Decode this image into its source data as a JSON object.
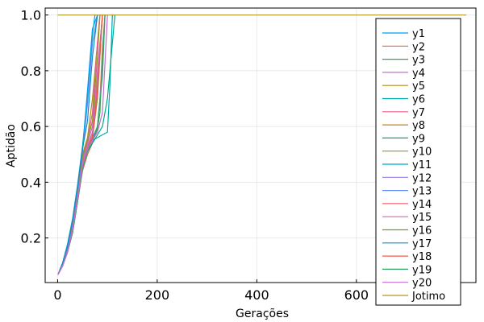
{
  "chart_data": {
    "type": "line",
    "title": "",
    "xlabel": "Gerações",
    "ylabel": "Aptidão",
    "xlim": [
      -25,
      840
    ],
    "ylim": [
      0.04,
      1.025
    ],
    "xticks": [
      0,
      200,
      400,
      600
    ],
    "xtick_labels": [
      "0",
      "200",
      "400",
      "600"
    ],
    "yticks": [
      0.2,
      0.4,
      0.6,
      0.8,
      1.0
    ],
    "ytick_labels": [
      "0.2",
      "0.4",
      "0.6",
      "0.8",
      "1.0"
    ],
    "grid": true,
    "legend_position": "right",
    "series": [
      {
        "name": "y1",
        "color": "#009AFA",
        "x": [
          1,
          10,
          20,
          30,
          40,
          50,
          60,
          70,
          80
        ],
        "y": [
          0.07,
          0.11,
          0.17,
          0.26,
          0.38,
          0.52,
          0.73,
          0.95,
          1.0
        ]
      },
      {
        "name": "y2",
        "color": "#E36F47",
        "x": [
          1,
          10,
          20,
          30,
          40,
          50,
          60,
          70,
          80,
          85,
          90,
          95
        ],
        "y": [
          0.07,
          0.1,
          0.15,
          0.22,
          0.33,
          0.44,
          0.5,
          0.54,
          0.6,
          0.7,
          0.88,
          1.0
        ]
      },
      {
        "name": "y3",
        "color": "#3EA44E",
        "x": [
          1,
          10,
          20,
          30,
          40,
          50,
          60,
          70,
          80,
          85,
          90,
          95
        ],
        "y": [
          0.07,
          0.1,
          0.15,
          0.23,
          0.34,
          0.46,
          0.52,
          0.55,
          0.59,
          0.65,
          0.85,
          1.0
        ]
      },
      {
        "name": "y4",
        "color": "#C371D2",
        "x": [
          1,
          10,
          20,
          30,
          40,
          50,
          60,
          70,
          80,
          90
        ],
        "y": [
          0.07,
          0.1,
          0.16,
          0.24,
          0.36,
          0.48,
          0.54,
          0.6,
          0.8,
          1.0
        ]
      },
      {
        "name": "y5",
        "color": "#AC8D18",
        "x": [
          1,
          10,
          20,
          30,
          40,
          50,
          60,
          70,
          80,
          85
        ],
        "y": [
          0.07,
          0.11,
          0.17,
          0.25,
          0.37,
          0.5,
          0.56,
          0.7,
          0.9,
          1.0
        ]
      },
      {
        "name": "y6",
        "color": "#00A9AD",
        "x": [
          1,
          10,
          20,
          30,
          40,
          50,
          60,
          70,
          80,
          90,
          100,
          105,
          110
        ],
        "y": [
          0.07,
          0.1,
          0.15,
          0.22,
          0.33,
          0.45,
          0.52,
          0.55,
          0.56,
          0.57,
          0.58,
          0.75,
          1.0
        ]
      },
      {
        "name": "y7",
        "color": "#ED5E93",
        "x": [
          1,
          10,
          20,
          30,
          40,
          50,
          60,
          70,
          80,
          85
        ],
        "y": [
          0.07,
          0.11,
          0.16,
          0.24,
          0.36,
          0.49,
          0.55,
          0.65,
          0.9,
          1.0
        ]
      },
      {
        "name": "y8",
        "color": "#C68225",
        "x": [
          1,
          10,
          20,
          30,
          40,
          50,
          60,
          70,
          80,
          90
        ],
        "y": [
          0.07,
          0.1,
          0.16,
          0.24,
          0.35,
          0.47,
          0.53,
          0.57,
          0.75,
          1.0
        ]
      },
      {
        "name": "y9",
        "color": "#00A98D",
        "x": [
          1,
          10,
          20,
          30,
          40,
          50,
          60,
          70,
          80,
          90,
          100,
          110,
          115
        ],
        "y": [
          0.07,
          0.1,
          0.15,
          0.22,
          0.33,
          0.45,
          0.51,
          0.54,
          0.57,
          0.6,
          0.7,
          0.9,
          1.0
        ]
      },
      {
        "name": "y10",
        "color": "#8E971E",
        "x": [
          1,
          10,
          20,
          30,
          40,
          50,
          60,
          70,
          80,
          85
        ],
        "y": [
          0.07,
          0.11,
          0.17,
          0.25,
          0.37,
          0.49,
          0.55,
          0.62,
          0.85,
          1.0
        ]
      },
      {
        "name": "y11",
        "color": "#00A8CB",
        "x": [
          1,
          10,
          20,
          30,
          40,
          50,
          60,
          70,
          75
        ],
        "y": [
          0.07,
          0.11,
          0.18,
          0.27,
          0.39,
          0.53,
          0.7,
          0.93,
          1.0
        ]
      },
      {
        "name": "y12",
        "color": "#9B7FE9",
        "x": [
          1,
          10,
          20,
          30,
          40,
          50,
          60,
          70,
          80,
          90,
          95
        ],
        "y": [
          0.07,
          0.1,
          0.15,
          0.23,
          0.34,
          0.46,
          0.53,
          0.56,
          0.6,
          0.8,
          1.0
        ]
      },
      {
        "name": "y13",
        "color": "#618DF7",
        "x": [
          1,
          10,
          20,
          30,
          40,
          50,
          60,
          70,
          80
        ],
        "y": [
          0.07,
          0.11,
          0.17,
          0.26,
          0.38,
          0.51,
          0.68,
          0.9,
          1.0
        ]
      },
      {
        "name": "y14",
        "color": "#F06372",
        "x": [
          1,
          10,
          20,
          30,
          40,
          50,
          60,
          70,
          80,
          85,
          90
        ],
        "y": [
          0.07,
          0.1,
          0.16,
          0.24,
          0.35,
          0.47,
          0.53,
          0.57,
          0.7,
          0.88,
          1.0
        ]
      },
      {
        "name": "y15",
        "color": "#DC63BC",
        "x": [
          1,
          10,
          20,
          30,
          40,
          50,
          60,
          70,
          80,
          90
        ],
        "y": [
          0.07,
          0.1,
          0.16,
          0.23,
          0.35,
          0.47,
          0.53,
          0.58,
          0.78,
          1.0
        ]
      },
      {
        "name": "y16",
        "color": "#6B9D2F",
        "x": [
          1,
          10,
          20,
          30,
          40,
          50,
          60,
          70,
          80,
          90
        ],
        "y": [
          0.07,
          0.1,
          0.15,
          0.23,
          0.34,
          0.46,
          0.52,
          0.56,
          0.7,
          1.0
        ]
      },
      {
        "name": "y17",
        "color": "#0B8FC5",
        "x": [
          1,
          10,
          20,
          30,
          40,
          50,
          60,
          70,
          80
        ],
        "y": [
          0.07,
          0.11,
          0.17,
          0.26,
          0.38,
          0.52,
          0.62,
          0.85,
          1.0
        ]
      },
      {
        "name": "y18",
        "color": "#F05A4C",
        "x": [
          1,
          10,
          20,
          30,
          40,
          50,
          60,
          70,
          80,
          90
        ],
        "y": [
          0.07,
          0.1,
          0.15,
          0.23,
          0.34,
          0.46,
          0.52,
          0.56,
          0.72,
          1.0
        ]
      },
      {
        "name": "y19",
        "color": "#2FA565",
        "x": [
          1,
          10,
          20,
          30,
          40,
          50,
          60,
          70,
          80,
          90,
          95
        ],
        "y": [
          0.07,
          0.1,
          0.15,
          0.22,
          0.33,
          0.45,
          0.51,
          0.55,
          0.6,
          0.78,
          1.0
        ]
      },
      {
        "name": "y20",
        "color": "#C36DD9",
        "x": [
          1,
          10,
          20,
          30,
          40,
          50,
          60,
          70,
          80,
          90,
          100
        ],
        "y": [
          0.07,
          0.1,
          0.15,
          0.23,
          0.34,
          0.46,
          0.52,
          0.55,
          0.58,
          0.65,
          1.0
        ]
      },
      {
        "name": "Jotimo",
        "color": "#B49828",
        "x": [
          1,
          820
        ],
        "y": [
          1.0,
          1.0
        ]
      }
    ]
  }
}
